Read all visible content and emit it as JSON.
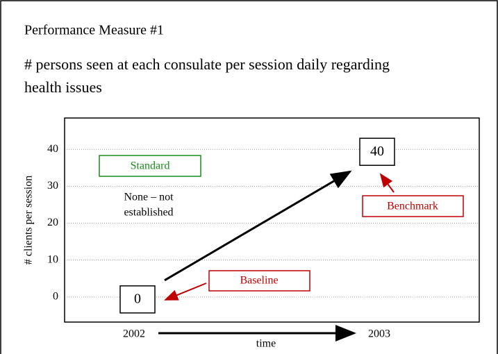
{
  "chart_data": {
    "type": "line",
    "title": "Performance Measure #1",
    "subtitle": [
      "# persons seen at each consulate per session daily regarding",
      "health issues"
    ],
    "x_label": "time",
    "y_label": "# clients per session",
    "categories": [
      "2002",
      "2003"
    ],
    "values": [
      0,
      40
    ],
    "color": "#000000",
    "ylim": [
      -6.8,
      48.5
    ],
    "yticks": [
      0,
      10,
      20,
      30,
      40
    ],
    "grid": true,
    "annotations": {
      "standard": "Standard",
      "standard_note": [
        "None – not",
        "established"
      ],
      "baseline": "Baseline",
      "benchmark": "Benchmark"
    }
  }
}
